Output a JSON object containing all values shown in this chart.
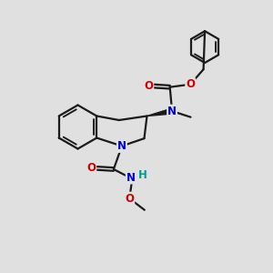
{
  "background_color": "#e0e0e0",
  "bond_color": "#1a1a1a",
  "bond_width": 1.6,
  "atom_colors": {
    "N": "#0000cc",
    "O": "#cc0000",
    "H": "#009999",
    "C": "#1a1a1a"
  },
  "font_size_atom": 8.5
}
